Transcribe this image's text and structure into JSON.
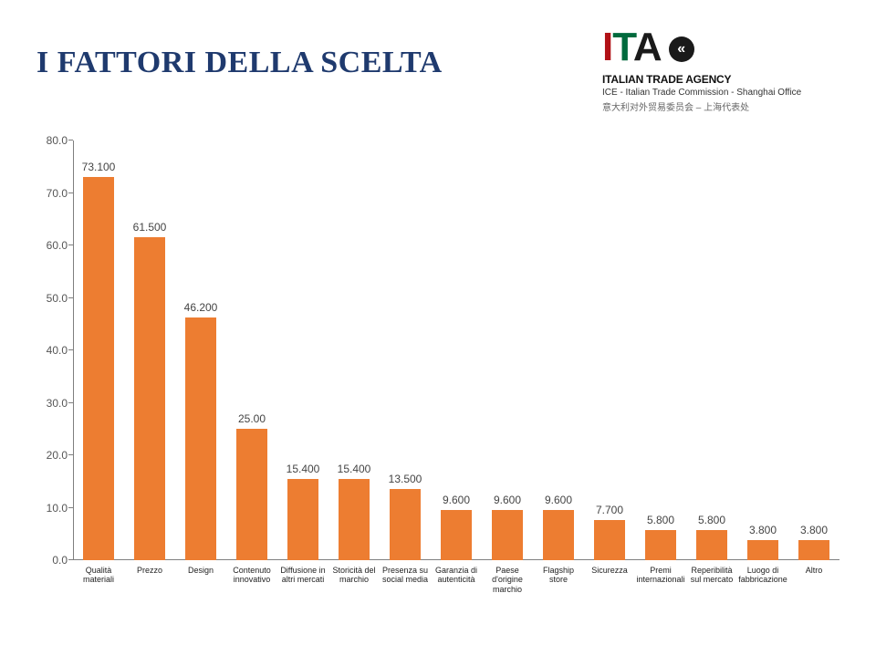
{
  "title": "I FATTORI DELLA SCELTA",
  "logo": {
    "letters": [
      "I",
      "T",
      "A"
    ],
    "glyph": "«",
    "line1": "ITALIAN TRADE AGENCY",
    "line2": "ICE - Italian Trade Commission - Shanghai Office",
    "line3": "意大利对外贸易委员会 – 上海代表处"
  },
  "chart": {
    "type": "bar",
    "ylim": [
      0,
      80
    ],
    "ytick_step": 10,
    "bar_color": "#ed7d31",
    "axis_color": "#7f7f7f",
    "tick_color": "#555555",
    "label_fontsize": 12,
    "category_fontsize": 9,
    "background_color": "#ffffff",
    "bar_width_ratio": 0.6,
    "categories": [
      "Qualità materiali",
      "Prezzo",
      "Design",
      "Contenuto innovativo",
      "Diffusione in altri mercati",
      "Storicità del marchio",
      "Presenza su social media",
      "Garanzia di autenticità",
      "Paese d'origine marchio",
      "Flagship store",
      "Sicurezza",
      "Premi internazionali",
      "Reperibilità sul mercato",
      "Luogo di fabbricazione",
      "Altro"
    ],
    "values": [
      73.1,
      61.5,
      46.2,
      25.0,
      15.4,
      15.4,
      13.5,
      9.6,
      9.6,
      9.6,
      7.7,
      5.8,
      5.8,
      3.8,
      3.8
    ],
    "value_labels": [
      "73.100",
      "61.500",
      "46.200",
      "25.00",
      "15.400",
      "15.400",
      "13.500",
      "9.600",
      "9.600",
      "9.600",
      "7.700",
      "5.800",
      "5.800",
      "3.800",
      "3.800"
    ],
    "yticks": [
      "0.0",
      "10.0",
      "20.0",
      "30.0",
      "40.0",
      "50.0",
      "60.0",
      "70.0",
      "80.0"
    ]
  }
}
